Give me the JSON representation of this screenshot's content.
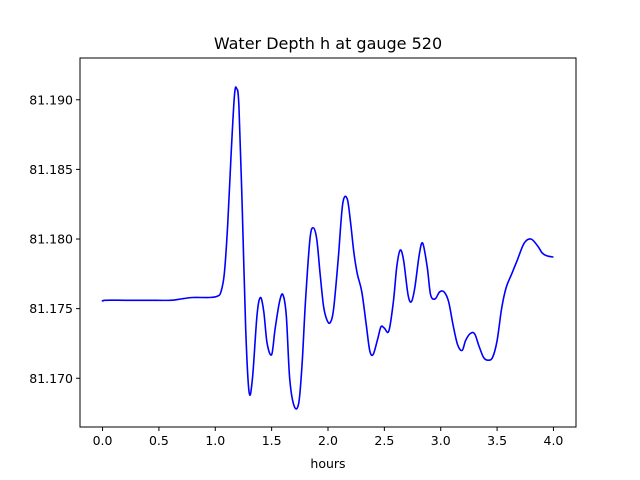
{
  "chart_data": {
    "type": "line",
    "title": "Water Depth h at gauge 520",
    "xlabel": "hours",
    "ylabel": "",
    "xlim": [
      -0.2,
      4.2
    ],
    "ylim": [
      81.1665,
      81.193
    ],
    "xticks": [
      "0.0",
      "0.5",
      "1.0",
      "1.5",
      "2.0",
      "2.5",
      "3.0",
      "3.5",
      "4.0"
    ],
    "yticks": [
      "81.170",
      "81.175",
      "81.180",
      "81.185",
      "81.190"
    ],
    "grid": false,
    "legend": "none",
    "series": [
      {
        "color": "#0000ff",
        "x": [
          0.0,
          0.02,
          0.2,
          0.4,
          0.6,
          0.7,
          0.8,
          0.95,
          1.02,
          1.05,
          1.08,
          1.11,
          1.14,
          1.17,
          1.19,
          1.21,
          1.24,
          1.27,
          1.3,
          1.33,
          1.37,
          1.4,
          1.43,
          1.46,
          1.5,
          1.53,
          1.57,
          1.6,
          1.63,
          1.66,
          1.7,
          1.74,
          1.77,
          1.8,
          1.84,
          1.87,
          1.9,
          1.93,
          1.96,
          1.99,
          2.02,
          2.05,
          2.09,
          2.13,
          2.17,
          2.2,
          2.23,
          2.26,
          2.3,
          2.34,
          2.37,
          2.4,
          2.44,
          2.47,
          2.5,
          2.54,
          2.58,
          2.61,
          2.64,
          2.67,
          2.71,
          2.74,
          2.77,
          2.81,
          2.84,
          2.88,
          2.91,
          2.95,
          2.99,
          3.03,
          3.07,
          3.11,
          3.15,
          3.19,
          3.22,
          3.26,
          3.3,
          3.34,
          3.38,
          3.42,
          3.46,
          3.5,
          3.54,
          3.58,
          3.63,
          3.68,
          3.74,
          3.8,
          3.86,
          3.9,
          3.94,
          4.0
        ],
        "y": [
          81.1755,
          81.1756,
          81.1756,
          81.1756,
          81.1756,
          81.1757,
          81.1758,
          81.1758,
          81.1759,
          81.1762,
          81.1775,
          81.181,
          81.186,
          81.1903,
          81.1908,
          81.1895,
          81.182,
          81.1735,
          81.169,
          81.17,
          81.1745,
          81.1758,
          81.1748,
          81.1725,
          81.1717,
          81.1735,
          81.1755,
          81.176,
          81.1745,
          81.17,
          81.168,
          81.1682,
          81.171,
          81.1755,
          81.18,
          81.1808,
          81.18,
          81.1775,
          81.1752,
          81.1742,
          81.174,
          81.175,
          81.1785,
          81.1825,
          81.1829,
          81.1812,
          81.179,
          81.1775,
          81.1762,
          81.1738,
          81.172,
          81.1717,
          81.1728,
          81.1737,
          81.1736,
          81.1734,
          81.1755,
          81.178,
          81.1792,
          81.1785,
          81.176,
          81.1755,
          81.1765,
          81.1789,
          81.1797,
          81.178,
          81.176,
          81.1757,
          81.1762,
          81.1762,
          81.1755,
          81.1738,
          81.1724,
          81.172,
          81.1727,
          81.1732,
          81.1732,
          81.1723,
          81.1715,
          81.1713,
          81.1715,
          81.1727,
          81.175,
          81.1765,
          81.1775,
          81.1785,
          81.1797,
          81.18,
          81.1795,
          81.179,
          81.1788,
          81.1787
        ]
      }
    ]
  }
}
